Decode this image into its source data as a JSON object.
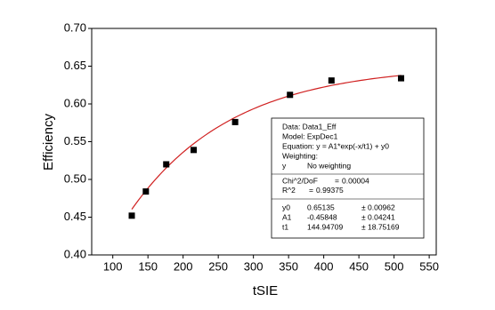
{
  "chart_data": {
    "type": "scatter",
    "xlabel": "tSIE",
    "ylabel": "Efficiency",
    "x": [
      127,
      147,
      176,
      215,
      274,
      352,
      411,
      510
    ],
    "series": [
      {
        "color": "#000000",
        "values": [
          0.452,
          0.484,
          0.52,
          0.539,
          0.576,
          0.612,
          0.631,
          0.634
        ]
      }
    ],
    "fit": {
      "color": "#d02020",
      "model_lines": [
        "Data: Data1_Eff",
        "Model: ExpDec1",
        "Equation: y = A1*exp(-x/t1) + y0",
        "Weighting:"
      ],
      "weighting": [
        "y",
        "No weighting"
      ],
      "stats": [
        {
          "label": "Chi^2/DoF",
          "sign": "=",
          "value": 4e-05
        },
        {
          "label": "R^2",
          "sign": "=",
          "value": 0.99375
        }
      ],
      "pm": "±",
      "params": [
        {
          "name": "y0",
          "value": 0.65135,
          "error": 0.00962
        },
        {
          "name": "A1",
          "value": -0.45848,
          "error": 0.04241
        },
        {
          "name": "t1",
          "value": 144.94709,
          "error": 18.75169
        }
      ]
    },
    "xlim": [
      70,
      560
    ],
    "xticks": [
      100,
      150,
      200,
      250,
      300,
      350,
      400,
      450,
      500,
      550
    ],
    "ylim": [
      0.4,
      0.7
    ],
    "yticks": [
      {
        "value": 0.4,
        "label": "0.40"
      },
      {
        "value": 0.45,
        "label": "0.45"
      },
      {
        "value": 0.5,
        "label": "0.50"
      },
      {
        "value": 0.55,
        "label": "0.55"
      },
      {
        "value": 0.6,
        "label": "0.60"
      },
      {
        "value": 0.65,
        "label": "0.65"
      },
      {
        "value": 0.7,
        "label": "0.70"
      }
    ]
  }
}
